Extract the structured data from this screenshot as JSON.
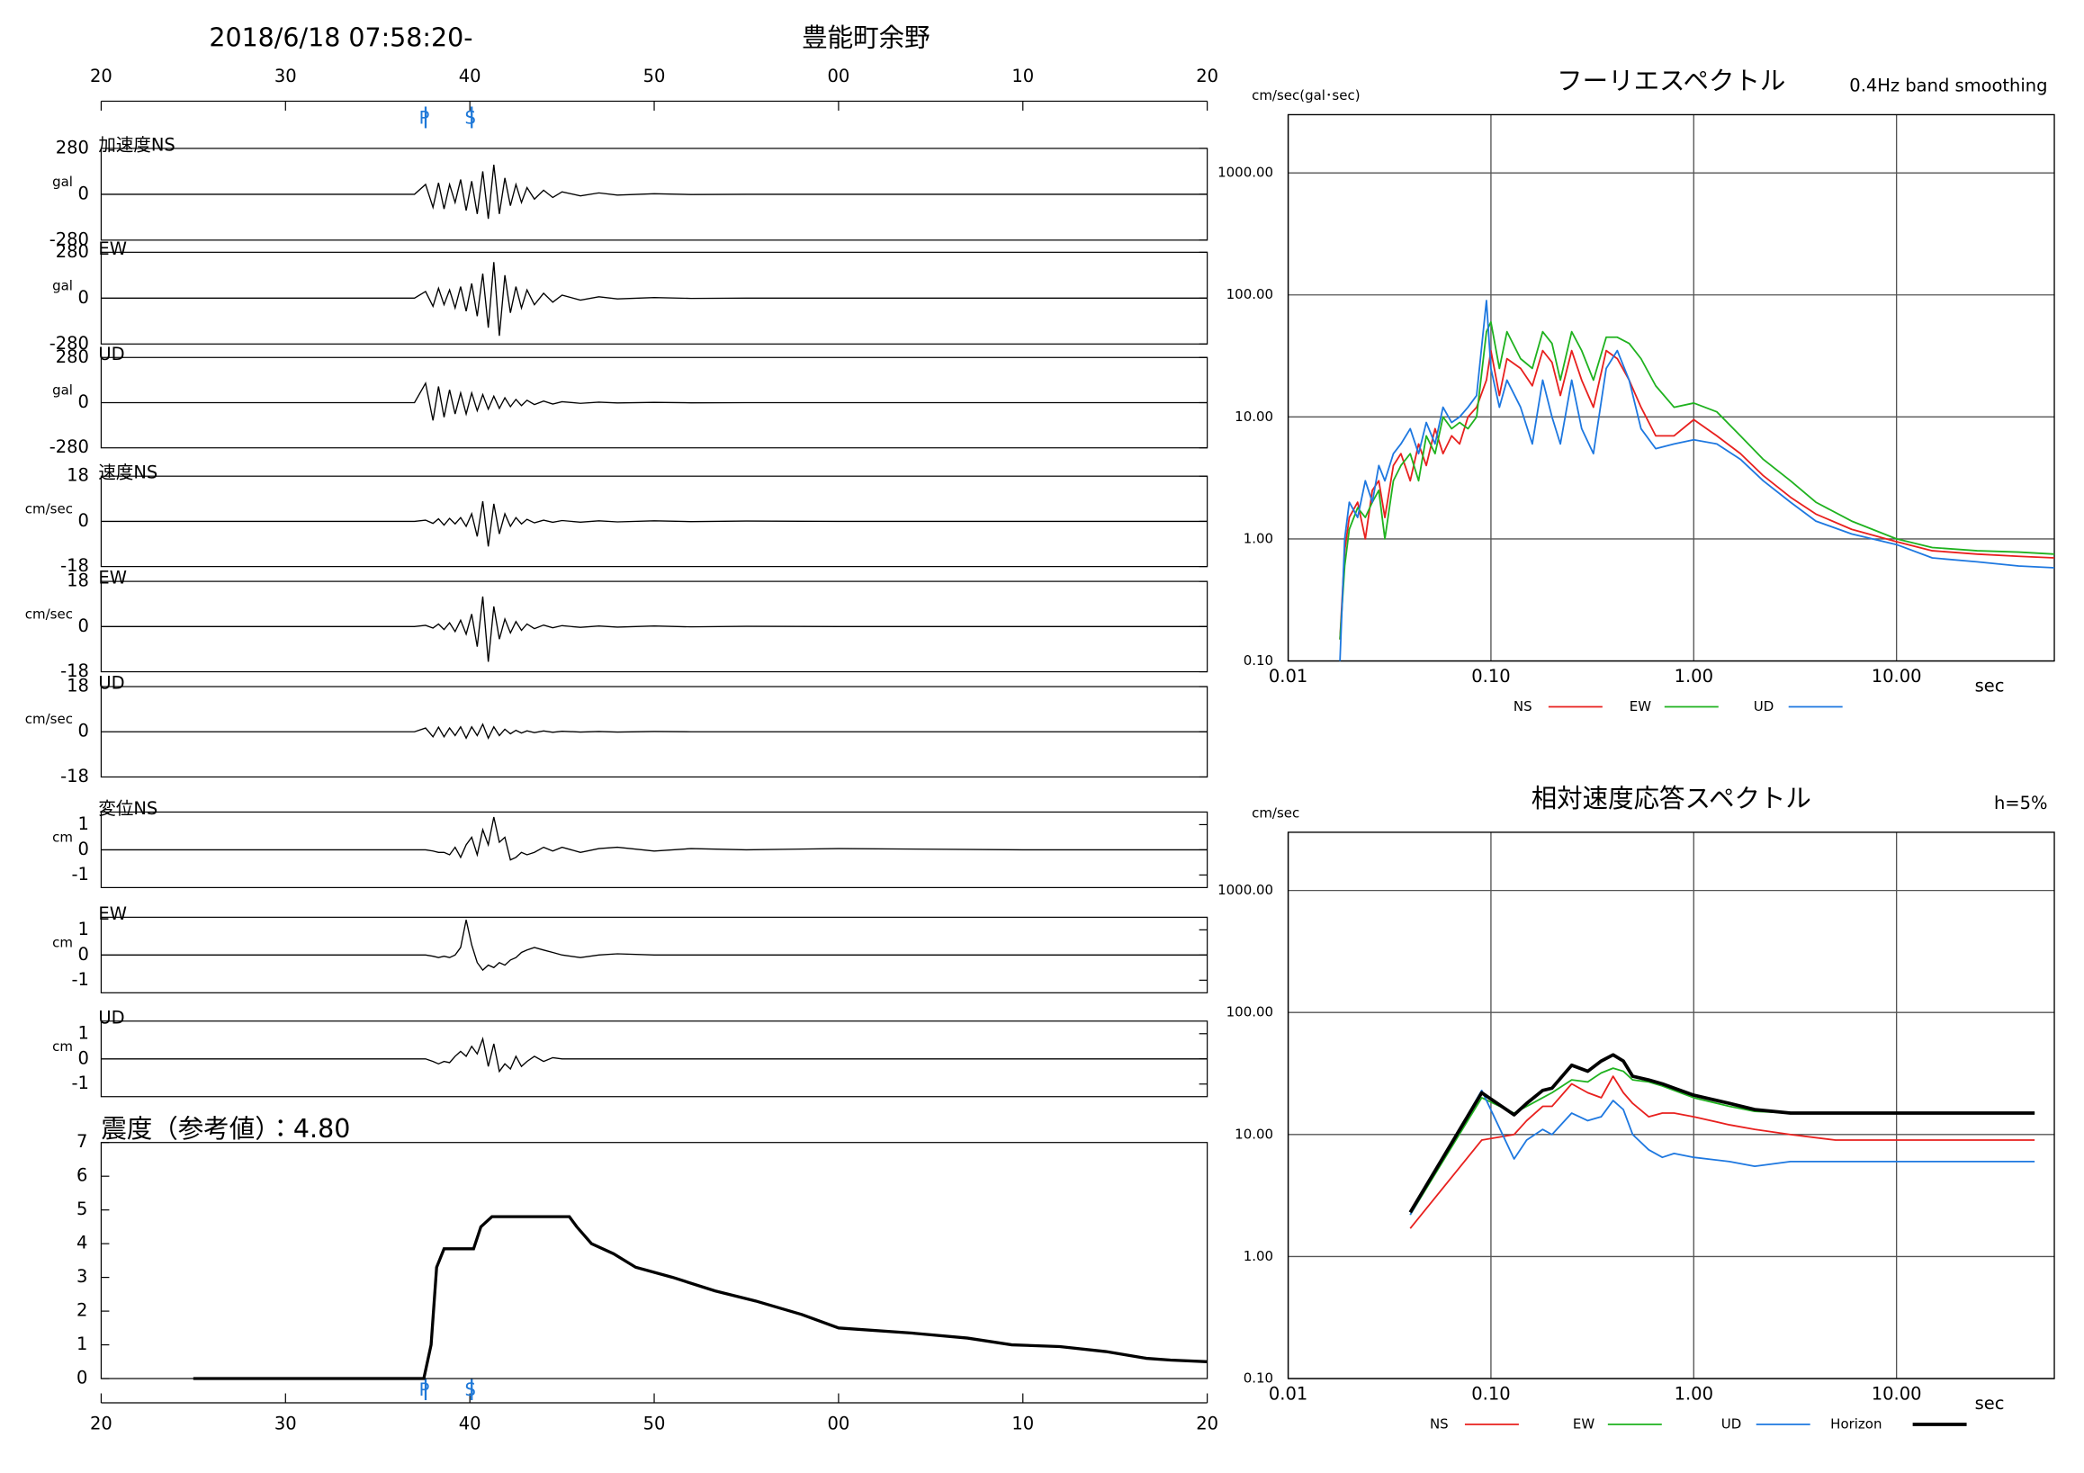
{
  "chart_data": [
    {
      "type": "waveform",
      "title": "2018/6/18 07:58:20-",
      "subtitle": "豊能町余野",
      "color": "#000000",
      "marker_color": "#1e78d8",
      "xlim": [
        20,
        80
      ],
      "xticks": [
        20,
        30,
        40,
        50,
        {
          "value": 60,
          "label": "00"
        },
        {
          "value": 70,
          "label": "10"
        },
        {
          "value": 80,
          "label": "20"
        }
      ],
      "markers": [
        {
          "label": "P",
          "x": 37.6
        },
        {
          "label": "S",
          "x": 40.1
        }
      ],
      "x": [
        20,
        37,
        37.6,
        38,
        38.3,
        38.6,
        38.9,
        39.2,
        39.5,
        39.8,
        40.1,
        40.4,
        40.7,
        41,
        41.3,
        41.6,
        41.9,
        42.2,
        42.5,
        42.8,
        43.1,
        43.5,
        44,
        44.5,
        45,
        46,
        47,
        48,
        50,
        52,
        55,
        60,
        70,
        80
      ],
      "panels": [
        {
          "name": "加速度NS",
          "unit": "gal",
          "ylim": [
            -280,
            280
          ],
          "yticks": [
            -280,
            0,
            280
          ],
          "values": [
            0,
            0,
            60,
            -80,
            70,
            -90,
            60,
            -50,
            90,
            -100,
            80,
            -120,
            140,
            -150,
            180,
            -120,
            100,
            -70,
            60,
            -50,
            40,
            -30,
            25,
            -20,
            15,
            -10,
            8,
            -5,
            3,
            -2,
            0,
            0,
            0,
            0
          ]
        },
        {
          "name": "EW",
          "unit": "gal",
          "ylim": [
            -280,
            280
          ],
          "yticks": [
            -280,
            0,
            280
          ],
          "values": [
            0,
            0,
            40,
            -50,
            60,
            -40,
            50,
            -60,
            70,
            -80,
            90,
            -110,
            150,
            -180,
            220,
            -230,
            140,
            -90,
            70,
            -60,
            50,
            -40,
            30,
            -25,
            18,
            -12,
            8,
            -5,
            3,
            -2,
            0,
            0,
            0,
            0
          ]
        },
        {
          "name": "UD",
          "unit": "gal",
          "ylim": [
            -280,
            280
          ],
          "yticks": [
            -280,
            0,
            280
          ],
          "values": [
            0,
            0,
            120,
            -110,
            100,
            -90,
            80,
            -70,
            60,
            -70,
            60,
            -50,
            50,
            -40,
            40,
            -35,
            30,
            -25,
            20,
            -18,
            15,
            -12,
            10,
            -8,
            6,
            -4,
            3,
            -2,
            2,
            -1,
            0,
            0,
            0,
            0
          ]
        },
        {
          "name": "速度NS",
          "unit": "cm/sec",
          "ylim": [
            -18,
            18
          ],
          "yticks": [
            -18,
            0,
            18
          ],
          "values": [
            0,
            0,
            0.5,
            -0.8,
            1,
            -1.5,
            1.2,
            -1,
            1.5,
            -2,
            3,
            -6,
            8,
            -10,
            7,
            -5,
            3,
            -2,
            1.5,
            -1,
            0.8,
            -0.6,
            0.5,
            -0.4,
            0.3,
            -0.3,
            0.2,
            -0.2,
            0.2,
            -0.1,
            0.1,
            0,
            0,
            0
          ]
        },
        {
          "name": "EW",
          "unit": "cm/sec",
          "ylim": [
            -18,
            18
          ],
          "yticks": [
            -18,
            0,
            18
          ],
          "values": [
            0,
            0,
            0.5,
            -0.6,
            1,
            -1.2,
            1.5,
            -2,
            2.5,
            -3,
            5,
            -8,
            12,
            -14,
            8,
            -5,
            3,
            -2.5,
            2,
            -1.5,
            1,
            -0.8,
            0.6,
            -0.5,
            0.4,
            -0.3,
            0.2,
            -0.2,
            0.2,
            -0.1,
            0.1,
            0,
            0,
            0
          ]
        },
        {
          "name": "UD",
          "unit": "cm/sec",
          "ylim": [
            -18,
            18
          ],
          "yticks": [
            -18,
            0,
            18
          ],
          "values": [
            0,
            0,
            1.5,
            -2,
            1.8,
            -2,
            1.5,
            -1.5,
            2,
            -2.5,
            2,
            -1.5,
            3,
            -2.5,
            2,
            -1.5,
            1,
            -0.8,
            0.6,
            -0.5,
            0.4,
            -0.3,
            0.3,
            -0.2,
            0.2,
            -0.1,
            0.1,
            -0.1,
            0.1,
            0,
            0,
            0,
            0,
            0
          ]
        },
        {
          "name": "変位NS",
          "unit": "cm",
          "ylim": [
            -1.5,
            1.5
          ],
          "yticks": [
            -1,
            0,
            1
          ],
          "values": [
            0,
            0,
            0,
            -0.05,
            -0.1,
            -0.1,
            -0.2,
            0.1,
            -0.3,
            0.2,
            0.5,
            -0.2,
            0.8,
            0.2,
            1.3,
            0.3,
            0.5,
            -0.4,
            -0.3,
            -0.1,
            -0.2,
            -0.1,
            0.1,
            -0.05,
            0.1,
            -0.1,
            0.05,
            0.1,
            -0.05,
            0.05,
            0,
            0.05,
            0,
            0
          ]
        },
        {
          "name": "EW",
          "unit": "cm",
          "ylim": [
            -1.5,
            1.5
          ],
          "yticks": [
            -1,
            0,
            1
          ],
          "values": [
            0,
            0,
            0,
            -0.05,
            -0.1,
            -0.05,
            -0.1,
            0,
            0.3,
            1.4,
            0.4,
            -0.3,
            -0.6,
            -0.4,
            -0.5,
            -0.3,
            -0.4,
            -0.2,
            -0.1,
            0.1,
            0.2,
            0.3,
            0.2,
            0.1,
            0,
            -0.1,
            0,
            0.05,
            0,
            0,
            0,
            0,
            0,
            0
          ]
        },
        {
          "name": "UD",
          "unit": "cm",
          "ylim": [
            -1.5,
            1.5
          ],
          "yticks": [
            -1,
            0,
            1
          ],
          "values": [
            0,
            0,
            0,
            -0.1,
            -0.2,
            -0.1,
            -0.15,
            0.1,
            0.3,
            0.1,
            0.5,
            0.2,
            0.8,
            -0.3,
            0.6,
            -0.5,
            -0.2,
            -0.4,
            0.1,
            -0.3,
            -0.1,
            0.1,
            -0.1,
            0.05,
            0,
            0,
            0,
            0,
            0,
            0,
            0,
            0,
            0,
            0
          ]
        }
      ]
    },
    {
      "type": "line",
      "title": "震度（参考値）：4.80",
      "color": "#000000",
      "marker_color": "#1e78d8",
      "xlim": [
        20,
        80
      ],
      "xticks": [
        20,
        30,
        40,
        50,
        {
          "value": 60,
          "label": "00"
        },
        {
          "value": 70,
          "label": "10"
        },
        {
          "value": 80,
          "label": "20"
        }
      ],
      "markers": [
        {
          "label": "P",
          "x": 37.6
        },
        {
          "label": "S",
          "x": 40.1
        }
      ],
      "ylim": [
        0,
        7
      ],
      "yticks": [
        0,
        1,
        2,
        3,
        4,
        5,
        6,
        7
      ],
      "x": [
        25,
        37.5,
        37.9,
        38.2,
        38.6,
        40.2,
        40.6,
        41.2,
        45.4,
        45.8,
        46.6,
        47.8,
        49,
        51,
        53.3,
        55.5,
        58,
        60,
        64,
        67,
        69.4,
        72,
        74.5,
        76.7,
        78,
        80
      ],
      "values": [
        0,
        0,
        1,
        3.3,
        3.85,
        3.85,
        4.5,
        4.8,
        4.8,
        4.5,
        4,
        3.7,
        3.3,
        3,
        2.6,
        2.3,
        1.9,
        1.5,
        1.35,
        1.2,
        1.0,
        0.95,
        0.8,
        0.6,
        0.55,
        0.5
      ]
    },
    {
      "type": "loglog",
      "title": "フーリエスペクトル",
      "note": "0.4Hz band smoothing",
      "ylabel": "cm/sec(gal･sec)",
      "xlabel": "sec",
      "grid": true,
      "xlim": [
        0.01,
        60
      ],
      "xticks": [
        0.01,
        {
          "value": 0.1,
          "label": "0.10"
        },
        {
          "value": 1,
          "label": "1.00"
        },
        {
          "value": 10,
          "label": "10.00"
        }
      ],
      "ylim": [
        0.1,
        3000
      ],
      "yticks": [
        {
          "value": 0.1,
          "label": "0.10"
        },
        {
          "value": 1,
          "label": "1.00"
        },
        {
          "value": 10,
          "label": "10.00"
        },
        {
          "value": 100,
          "label": "100.00"
        },
        {
          "value": 1000,
          "label": "1000.00"
        }
      ],
      "x": [
        0.018,
        0.019,
        0.02,
        0.022,
        0.024,
        0.026,
        0.028,
        0.03,
        0.033,
        0.036,
        0.04,
        0.044,
        0.048,
        0.053,
        0.058,
        0.064,
        0.07,
        0.077,
        0.085,
        0.095,
        0.1,
        0.11,
        0.12,
        0.14,
        0.16,
        0.18,
        0.2,
        0.22,
        0.25,
        0.28,
        0.32,
        0.37,
        0.42,
        0.48,
        0.55,
        0.65,
        0.8,
        1.0,
        1.3,
        1.7,
        2.2,
        3,
        4,
        6,
        10,
        15,
        25,
        40,
        60
      ],
      "series": [
        {
          "name": "NS",
          "color": "#e8201e",
          "width": 1.2,
          "values": [
            0.15,
            0.8,
            1.5,
            2,
            1,
            2.5,
            3,
            1.5,
            4,
            5,
            3,
            6,
            4,
            8,
            5,
            7,
            6,
            10,
            12,
            20,
            35,
            15,
            30,
            25,
            18,
            35,
            28,
            15,
            35,
            20,
            12,
            35,
            30,
            20,
            12,
            7,
            7,
            9.5,
            7,
            5,
            3.3,
            2.2,
            1.6,
            1.2,
            0.95,
            0.8,
            0.75,
            0.72,
            0.7
          ]
        },
        {
          "name": "EW",
          "color": "#1fb21f",
          "width": 1.2,
          "values": [
            0.15,
            0.6,
            1.2,
            1.8,
            1.5,
            2,
            2.5,
            1,
            3,
            4,
            5,
            3,
            7,
            5,
            10,
            8,
            9,
            8,
            10,
            50,
            60,
            25,
            50,
            30,
            25,
            50,
            40,
            20,
            50,
            35,
            20,
            45,
            45,
            40,
            30,
            18,
            12,
            13,
            11,
            7,
            4.5,
            3,
            2,
            1.4,
            1.0,
            0.85,
            0.8,
            0.78,
            0.75
          ]
        },
        {
          "name": "UD",
          "color": "#1e78e0",
          "width": 1.2,
          "values": [
            0.1,
            1,
            2,
            1.5,
            3,
            2,
            4,
            3,
            5,
            6,
            8,
            5,
            9,
            6,
            12,
            9,
            10,
            12,
            15,
            90,
            25,
            12,
            20,
            12,
            6,
            20,
            10,
            6,
            20,
            8,
            5,
            25,
            35,
            20,
            8,
            5.5,
            6,
            6.5,
            6,
            4.5,
            3,
            2,
            1.4,
            1.1,
            0.9,
            0.7,
            0.65,
            0.6,
            0.58
          ]
        }
      ]
    },
    {
      "type": "loglog",
      "title": "相対速度応答スペクトル",
      "note": "h=5%",
      "ylabel": "cm/sec",
      "xlabel": "sec",
      "grid": true,
      "xlim": [
        0.01,
        60
      ],
      "xticks": [
        0.01,
        {
          "value": 0.1,
          "label": "0.10"
        },
        {
          "value": 1,
          "label": "1.00"
        },
        {
          "value": 10,
          "label": "10.00"
        }
      ],
      "ylim": [
        0.1,
        3000
      ],
      "yticks": [
        {
          "value": 0.1,
          "label": "0.10"
        },
        {
          "value": 1,
          "label": "1.00"
        },
        {
          "value": 10,
          "label": "10.00"
        },
        {
          "value": 100,
          "label": "100.00"
        },
        {
          "value": 1000,
          "label": "1000.00"
        }
      ],
      "x": [
        0.04,
        0.09,
        0.13,
        0.15,
        0.18,
        0.2,
        0.25,
        0.3,
        0.35,
        0.4,
        0.45,
        0.5,
        0.6,
        0.7,
        0.8,
        1.0,
        1.5,
        2,
        3,
        5,
        10,
        20,
        48
      ],
      "series": [
        {
          "name": "NS",
          "color": "#e8201e",
          "width": 1.2,
          "values": [
            1.7,
            9,
            10,
            13,
            17,
            17,
            26,
            22,
            20,
            30,
            22,
            18,
            14,
            15,
            15,
            14,
            12,
            11,
            10,
            9,
            9,
            9,
            9
          ]
        },
        {
          "name": "EW",
          "color": "#1fb21f",
          "width": 1.2,
          "values": [
            2.2,
            20,
            15,
            17,
            20,
            22,
            28,
            27,
            32,
            35,
            33,
            28,
            27,
            25,
            23,
            20,
            17,
            15.5,
            15,
            15,
            15,
            15,
            15
          ]
        },
        {
          "name": "UD",
          "color": "#1e78e0",
          "width": 1.2,
          "values": [
            2.2,
            23,
            6.3,
            9,
            11,
            10,
            15,
            13,
            14,
            19,
            16,
            10,
            7.5,
            6.5,
            7,
            6.5,
            6,
            5.5,
            6,
            6,
            6,
            6,
            6
          ]
        },
        {
          "name": "Horizon",
          "color": "#000000",
          "width": 2.5,
          "values": [
            2.3,
            22,
            14.5,
            18,
            23,
            24,
            37,
            33,
            40,
            45,
            40,
            30,
            28,
            26,
            24,
            21,
            18,
            16,
            15,
            15,
            15,
            15,
            15
          ]
        }
      ]
    }
  ]
}
